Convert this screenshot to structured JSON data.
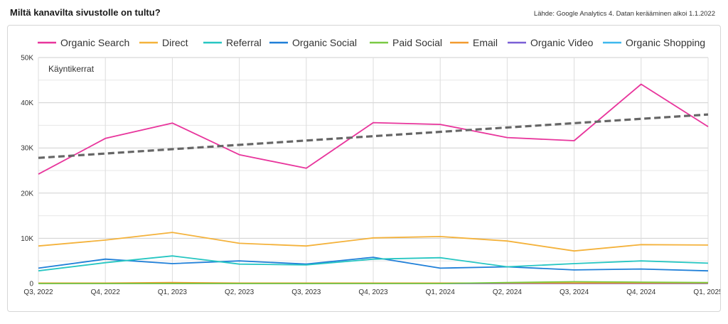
{
  "header": {
    "title": "Miltä kanavilta sivustolle on tultu?",
    "source": "Lähde: Google Analytics 4. Datan kerääminen alkoi 1.1.2022"
  },
  "chart_data": {
    "type": "line",
    "metric_label": "Käyntikerrat",
    "categories": [
      "Q3, 2022",
      "Q4, 2022",
      "Q1, 2023",
      "Q2, 2023",
      "Q3, 2023",
      "Q4, 2023",
      "Q1, 2024",
      "Q2, 2024",
      "Q3, 2024",
      "Q4, 2024",
      "Q1, 2025"
    ],
    "ylim": [
      0,
      50000
    ],
    "yticks": [
      0,
      10000,
      20000,
      30000,
      40000,
      50000
    ],
    "ytick_labels": [
      "0",
      "10K",
      "20K",
      "30K",
      "40K",
      "50K"
    ],
    "grid": true,
    "legend_position": "top",
    "series": [
      {
        "name": "Organic Search",
        "color": "#e8359c",
        "values": [
          24200,
          32100,
          35500,
          28500,
          25500,
          35600,
          35200,
          32300,
          31600,
          44100,
          34700
        ]
      },
      {
        "name": "Direct",
        "color": "#f4b23b",
        "values": [
          8300,
          9600,
          11300,
          8900,
          8300,
          10100,
          10400,
          9400,
          7200,
          8600,
          8500
        ]
      },
      {
        "name": "Referral",
        "color": "#26c6c2",
        "values": [
          2800,
          4600,
          6100,
          4300,
          4100,
          5400,
          5700,
          3700,
          4400,
          5000,
          4500
        ]
      },
      {
        "name": "Organic Social",
        "color": "#1f7fd8",
        "values": [
          3400,
          5400,
          4400,
          5000,
          4300,
          5800,
          3400,
          3700,
          3000,
          3200,
          2800
        ]
      },
      {
        "name": "Paid Social",
        "color": "#7ac943",
        "values": [
          0,
          0,
          0,
          0,
          0,
          0,
          0,
          200,
          400,
          300,
          200
        ]
      },
      {
        "name": "Email",
        "color": "#f39a2e",
        "values": [
          100,
          100,
          200,
          100,
          100,
          100,
          100,
          100,
          100,
          100,
          100
        ]
      },
      {
        "name": "Organic Video",
        "color": "#7a5fd6",
        "values": [
          0,
          0,
          0,
          0,
          0,
          0,
          0,
          0,
          0,
          0,
          0
        ]
      },
      {
        "name": "Organic Shopping",
        "color": "#3db8ee",
        "values": [
          0,
          0,
          0,
          0,
          0,
          0,
          0,
          0,
          0,
          0,
          0
        ]
      }
    ],
    "trendline": {
      "series": "Organic Search",
      "color": "#666666",
      "start": 27800,
      "end": 37400
    }
  }
}
